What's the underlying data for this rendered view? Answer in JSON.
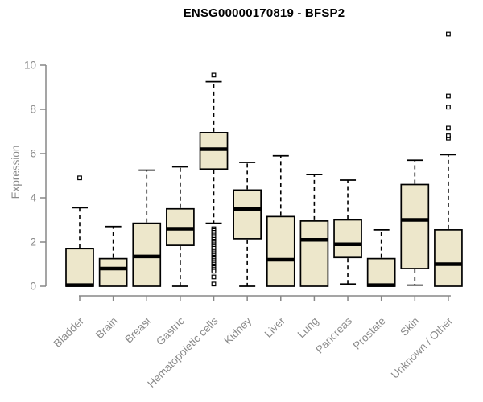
{
  "header": {
    "title": "ENSG00000170819 - BFSP2"
  },
  "chart_data": {
    "type": "boxplot",
    "title": "ENSG00000170819 - BFSP2",
    "xlabel": "",
    "ylabel": "Expression",
    "ylim": [
      0,
      10
    ],
    "yticks": [
      0,
      2,
      4,
      6,
      8,
      10
    ],
    "grid": false,
    "legend": "none",
    "categories": [
      "Bladder",
      "Brain",
      "Breast",
      "Gastric",
      "Hematopoietic cells",
      "Kidney",
      "Liver",
      "Lung",
      "Pancreas",
      "Prostate",
      "Skin",
      "Unknown / Other"
    ],
    "series": [
      {
        "name": "Bladder",
        "whisker_low": 0,
        "q1": 0,
        "median": 0.05,
        "q3": 1.7,
        "whisker_high": 3.55,
        "outliers": [
          4.9
        ]
      },
      {
        "name": "Brain",
        "whisker_low": 0,
        "q1": 0,
        "median": 0.8,
        "q3": 1.25,
        "whisker_high": 2.7,
        "outliers": []
      },
      {
        "name": "Breast",
        "whisker_low": 0,
        "q1": 0,
        "median": 1.35,
        "q3": 2.85,
        "whisker_high": 5.25,
        "outliers": []
      },
      {
        "name": "Gastric",
        "whisker_low": 0,
        "q1": 1.85,
        "median": 2.6,
        "q3": 3.5,
        "whisker_high": 5.4,
        "outliers": []
      },
      {
        "name": "Hematopoietic cells",
        "whisker_low": 2.85,
        "q1": 5.3,
        "median": 6.2,
        "q3": 6.95,
        "whisker_high": 9.25,
        "outliers": [
          9.55,
          2.6,
          2.52,
          2.44,
          2.36,
          2.28,
          2.2,
          2.12,
          2.04,
          1.96,
          1.88,
          1.8,
          1.72,
          1.64,
          1.56,
          1.48,
          1.4,
          1.32,
          1.24,
          1.16,
          1.08,
          1.0,
          0.92,
          0.84,
          0.76,
          0.68,
          0.42,
          0.1
        ]
      },
      {
        "name": "Kidney",
        "whisker_low": 0,
        "q1": 2.15,
        "median": 3.5,
        "q3": 4.35,
        "whisker_high": 5.6,
        "outliers": []
      },
      {
        "name": "Liver",
        "whisker_low": 0,
        "q1": 0,
        "median": 1.2,
        "q3": 3.15,
        "whisker_high": 5.9,
        "outliers": []
      },
      {
        "name": "Lung",
        "whisker_low": 0,
        "q1": 0,
        "median": 2.1,
        "q3": 2.95,
        "whisker_high": 5.05,
        "outliers": []
      },
      {
        "name": "Pancreas",
        "whisker_low": 0.1,
        "q1": 1.3,
        "median": 1.9,
        "q3": 3.0,
        "whisker_high": 4.8,
        "outliers": []
      },
      {
        "name": "Prostate",
        "whisker_low": 0,
        "q1": 0,
        "median": 0.05,
        "q3": 1.25,
        "whisker_high": 2.55,
        "outliers": []
      },
      {
        "name": "Skin",
        "whisker_low": 0.05,
        "q1": 0.8,
        "median": 3.0,
        "q3": 4.6,
        "whisker_high": 5.7,
        "outliers": []
      },
      {
        "name": "Unknown / Other",
        "whisker_low": 0,
        "q1": 0,
        "median": 1.0,
        "q3": 2.55,
        "whisker_high": 5.95,
        "outliers": [
          6.7,
          6.8,
          7.15,
          8.1,
          8.6,
          11.4
        ]
      }
    ]
  },
  "style": {
    "box_fill": "#EDE7CB",
    "box_border": "#000000",
    "median_color": "#000000",
    "axis_color": "#878787",
    "tick_text_color": "#8A8A8A",
    "title_color": "#000000"
  }
}
